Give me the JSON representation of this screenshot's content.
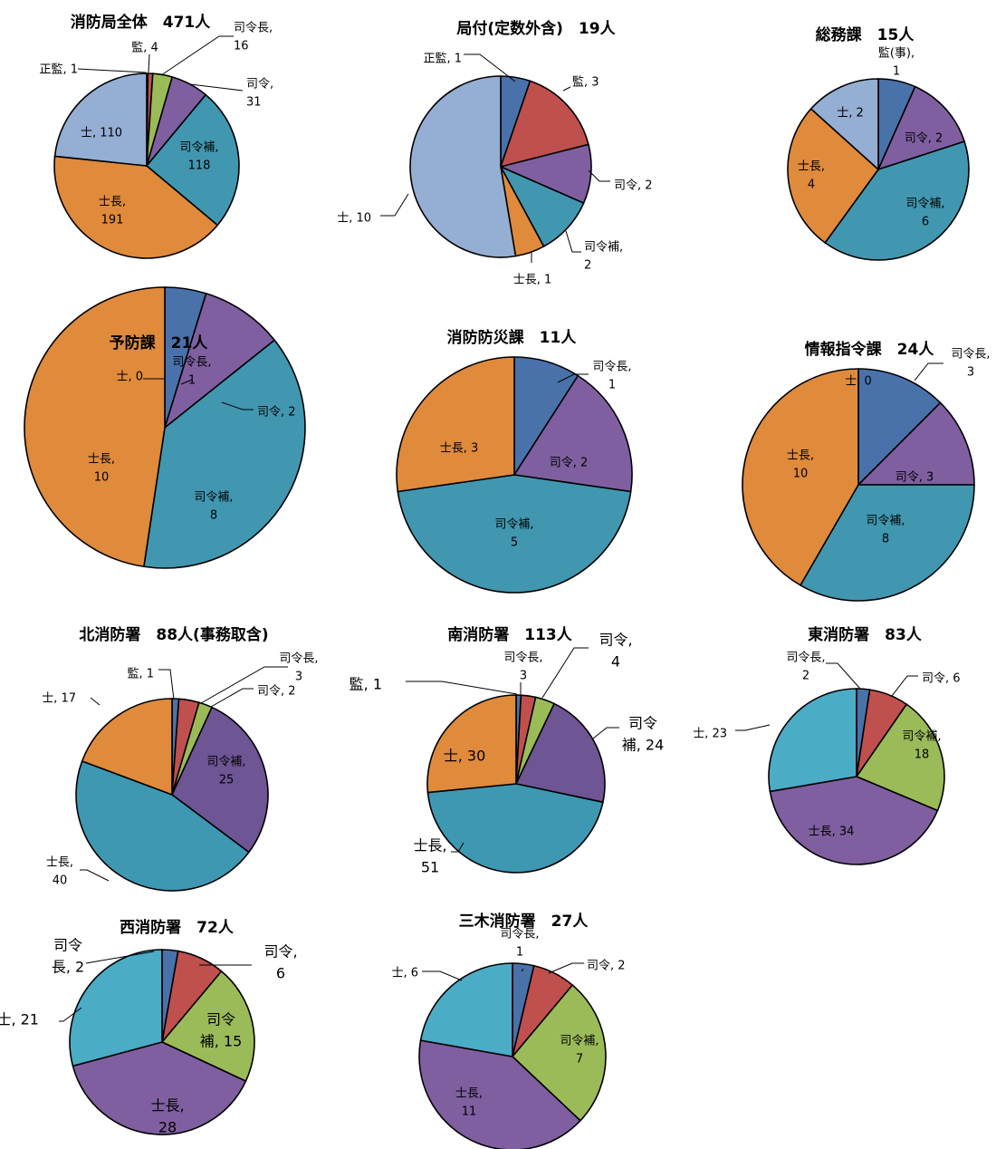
{
  "colors": {
    "blue": "#4A72AA",
    "red": "#C0504D",
    "green": "#9BBB59",
    "purple": "#7F5FA0",
    "teal": "#4197B0",
    "orange": "#E08A3C",
    "lightblue": "#95AED3",
    "cyan": "#4BACC6",
    "darkpurple": "#6E5594",
    "darkteal": "#3F98B2"
  },
  "chart_data": [
    {
      "type": "pie",
      "title": "消防局全体　471人",
      "slices": [
        {
          "label": "正監, 1",
          "value": 1,
          "color": "red"
        },
        {
          "label": "監, 4",
          "value": 4,
          "color": "red"
        },
        {
          "label": "司令長,\n16",
          "value": 16,
          "color": "green"
        },
        {
          "label": "司令,\n31",
          "value": 31,
          "color": "purple"
        },
        {
          "label": "司令補,\n118",
          "value": 118,
          "color": "teal"
        },
        {
          "label": "士長,\n191",
          "value": 191,
          "color": "orange"
        },
        {
          "label": "士, 110",
          "value": 110,
          "color": "lightblue"
        }
      ]
    },
    {
      "type": "pie",
      "title": "局付(定数外含)　19人",
      "slices": [
        {
          "label": "正監, 1",
          "value": 1,
          "color": "blue"
        },
        {
          "label": "監, 3",
          "value": 3,
          "color": "red"
        },
        {
          "label": "司令, 2",
          "value": 2,
          "color": "purple"
        },
        {
          "label": "司令補,\n2",
          "value": 2,
          "color": "teal"
        },
        {
          "label": "士長, 1",
          "value": 1,
          "color": "orange"
        },
        {
          "label": "士, 10",
          "value": 10,
          "color": "lightblue"
        }
      ]
    },
    {
      "type": "pie",
      "title": "総務課　15人",
      "slices": [
        {
          "label": "監(事),\n1",
          "value": 1,
          "color": "blue"
        },
        {
          "label": "司令, 2",
          "value": 2,
          "color": "purple"
        },
        {
          "label": "司令補,\n6",
          "value": 6,
          "color": "teal"
        },
        {
          "label": "士長,\n4",
          "value": 4,
          "color": "orange"
        },
        {
          "label": "士, 2",
          "value": 2,
          "color": "lightblue"
        }
      ]
    },
    {
      "type": "pie",
      "title": "予防課　21人",
      "slices": [
        {
          "label": "司令長,\n1",
          "value": 1,
          "color": "blue"
        },
        {
          "label": "司令, 2",
          "value": 2,
          "color": "purple"
        },
        {
          "label": "司令補,\n8",
          "value": 8,
          "color": "teal"
        },
        {
          "label": "士長,\n10",
          "value": 10,
          "color": "orange"
        },
        {
          "label": "士, 0",
          "value": 0,
          "color": "lightblue"
        }
      ]
    },
    {
      "type": "pie",
      "title": "消防防災課　11人",
      "slices": [
        {
          "label": "司令長,\n1",
          "value": 1,
          "color": "blue"
        },
        {
          "label": "司令, 2",
          "value": 2,
          "color": "purple"
        },
        {
          "label": "司令補,\n5",
          "value": 5,
          "color": "teal"
        },
        {
          "label": "士長, 3",
          "value": 3,
          "color": "orange"
        }
      ]
    },
    {
      "type": "pie",
      "title": "情報指令課　24人",
      "slices": [
        {
          "label": "司令長,\n3",
          "value": 3,
          "color": "blue"
        },
        {
          "label": "司令, 3",
          "value": 3,
          "color": "purple"
        },
        {
          "label": "司令補,\n8",
          "value": 8,
          "color": "teal"
        },
        {
          "label": "士長,\n10",
          "value": 10,
          "color": "orange"
        },
        {
          "label": "士, 0",
          "value": 0,
          "color": "lightblue"
        }
      ]
    },
    {
      "type": "pie",
      "title": "北消防署　88人(事務取含)",
      "slices": [
        {
          "label": "監, 1",
          "value": 1,
          "color": "blue"
        },
        {
          "label": "司令長,\n3",
          "value": 3,
          "color": "red"
        },
        {
          "label": "司令, 2",
          "value": 2,
          "color": "green"
        },
        {
          "label": "司令補,\n25",
          "value": 25,
          "color": "darkpurple"
        },
        {
          "label": "士長,\n40",
          "value": 40,
          "color": "darkteal"
        },
        {
          "label": "士, 17",
          "value": 17,
          "color": "orange"
        }
      ]
    },
    {
      "type": "pie",
      "title": "南消防署　113人",
      "slices": [
        {
          "label": "監, 1",
          "value": 1,
          "color": "blue"
        },
        {
          "label": "司令長,\n3",
          "value": 3,
          "color": "red"
        },
        {
          "label": "司令,\n4",
          "value": 4,
          "color": "green"
        },
        {
          "label": "司令\n補, 24",
          "value": 24,
          "color": "darkpurple"
        },
        {
          "label": "士長,\n51",
          "value": 51,
          "color": "darkteal"
        },
        {
          "label": "士, 30",
          "value": 30,
          "color": "orange"
        }
      ]
    },
    {
      "type": "pie",
      "title": "東消防署　83人",
      "slices": [
        {
          "label": "司令長,\n2",
          "value": 2,
          "color": "blue"
        },
        {
          "label": "司令, 6",
          "value": 6,
          "color": "red"
        },
        {
          "label": "司令補,\n18",
          "value": 18,
          "color": "green"
        },
        {
          "label": "士長, 34",
          "value": 34,
          "color": "purple"
        },
        {
          "label": "士, 23",
          "value": 23,
          "color": "cyan"
        }
      ]
    },
    {
      "type": "pie",
      "title": "西消防署　72人",
      "slices": [
        {
          "label": "司令\n長, 2",
          "value": 2,
          "color": "blue"
        },
        {
          "label": "司令,\n6",
          "value": 6,
          "color": "red"
        },
        {
          "label": "司令\n補, 15",
          "value": 15,
          "color": "green"
        },
        {
          "label": "士長,\n28",
          "value": 28,
          "color": "purple"
        },
        {
          "label": "士, 21",
          "value": 21,
          "color": "cyan"
        }
      ]
    },
    {
      "type": "pie",
      "title": "三木消防署　27人",
      "slices": [
        {
          "label": "司令長,\n1",
          "value": 1,
          "color": "blue"
        },
        {
          "label": "司令, 2",
          "value": 2,
          "color": "red"
        },
        {
          "label": "司令補,\n7",
          "value": 7,
          "color": "green"
        },
        {
          "label": "士長,\n11",
          "value": 11,
          "color": "purple"
        },
        {
          "label": "士, 6",
          "value": 6,
          "color": "cyan"
        }
      ]
    }
  ]
}
